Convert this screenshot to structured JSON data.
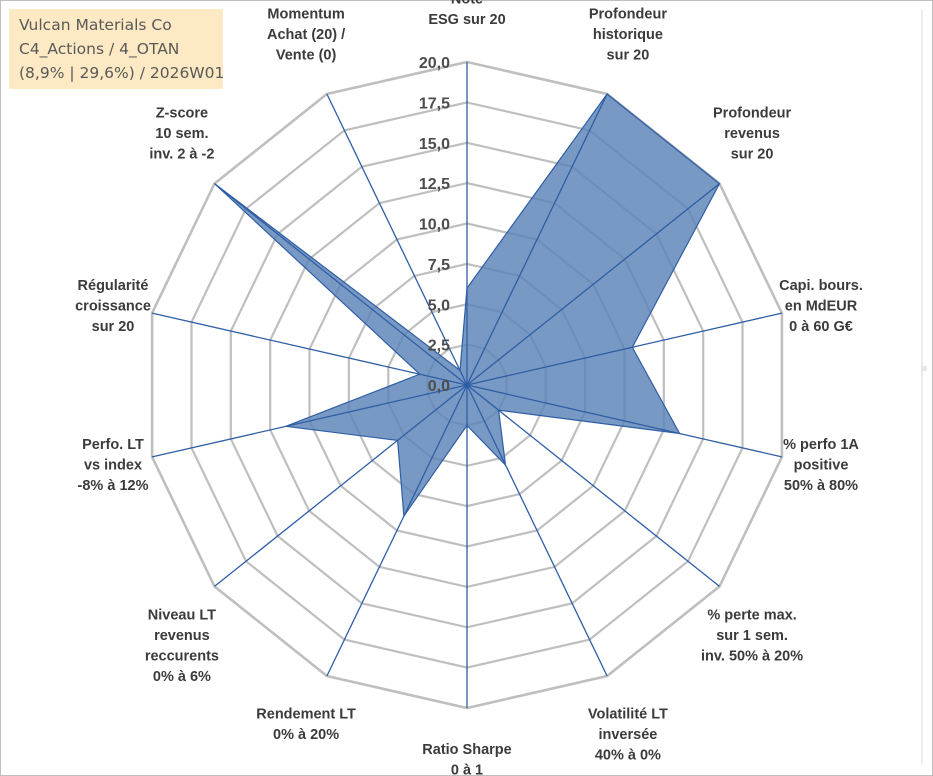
{
  "info_box": {
    "company": "Vulcan Materials Co",
    "portfolio": "C4_Actions / 4_OTAN",
    "stats": "(8,9% | 29,6%) / 2026W01"
  },
  "colors": {
    "fill": "#5a83b7",
    "fill_opacity": 0.82,
    "series_line": "#2f5ea5",
    "spoke": "#2f5ea5",
    "grid": "#bfbfbf",
    "info_bg": "#fde9c4"
  },
  "chart_data": {
    "type": "radar",
    "title": "",
    "range": [
      0,
      20
    ],
    "tick_step": 2.5,
    "ticks": [
      "0,0",
      "2,5",
      "5,0",
      "7,5",
      "10,0",
      "12,5",
      "15,0",
      "17,5",
      "20,0"
    ],
    "axes": [
      {
        "label": [
          "Note",
          "ESG sur 20"
        ],
        "value": 6.0
      },
      {
        "label": [
          "Profondeur",
          "historique",
          "sur 20"
        ],
        "value": 20.0
      },
      {
        "label": [
          "Profondeur",
          "revenus",
          "sur 20"
        ],
        "value": 20.0
      },
      {
        "label": [
          "Capi. bours.",
          "en MdEUR",
          "0 à 60 G€"
        ],
        "value": 10.5
      },
      {
        "label": [
          "% perfo 1A",
          "positive",
          "50% à 80%"
        ],
        "value": 13.5
      },
      {
        "label": [
          "% perte max.",
          "sur 1 sem.",
          "inv. 50% à 20%"
        ],
        "value": 2.5
      },
      {
        "label": [
          "Volatilité LT",
          "inversée",
          "40% à 0%"
        ],
        "value": 5.5
      },
      {
        "label": [
          "Ratio Sharpe",
          "0 à 1"
        ],
        "value": 2.5
      },
      {
        "label": [
          "Rendement LT",
          "0% à 20%"
        ],
        "value": 9.0
      },
      {
        "label": [
          "Niveau LT",
          "revenus",
          "reccurents",
          "0% à 6%"
        ],
        "value": 5.5
      },
      {
        "label": [
          "Perfo. LT",
          "vs index",
          "-8% à 12%"
        ],
        "value": 11.5
      },
      {
        "label": [
          "Régularité",
          "croissance",
          "sur 20"
        ],
        "value": 3.0
      },
      {
        "label": [
          "Z-score",
          "10 sem.",
          "inv. 2 à -2"
        ],
        "value": 20.0
      },
      {
        "label": [
          "Momentum",
          "Achat (20) /",
          "Vente (0)"
        ],
        "value": 1.0
      }
    ]
  }
}
